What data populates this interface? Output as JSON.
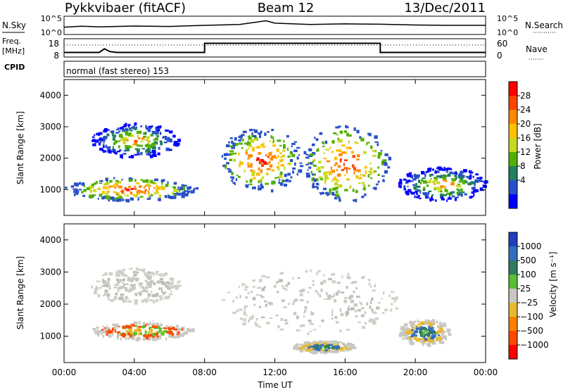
{
  "header": {
    "station": "Pykkvibaer (fitACF)",
    "beam": "Beam 12",
    "date": "13/Dec/2011"
  },
  "status_panel": {
    "nsky_label": "N.Sky",
    "nsky_ticks": [
      "10^5",
      "10^0"
    ],
    "nsearch_label": "N.Search",
    "freq_label_1": "Freq.",
    "freq_label_2": "[MHz]",
    "freq_ticks": [
      "18",
      "8"
    ],
    "nave_label": "Nave",
    "nave_ticks": [
      "60",
      "0"
    ],
    "cpid_label": "CPID",
    "cpid_text": "normal (fast stereo) 153",
    "nsky_series": {
      "t": [
        0,
        1,
        2,
        4,
        6,
        8,
        10,
        11.5,
        12,
        14,
        16,
        18,
        20,
        22,
        24
      ],
      "frac": [
        0.4,
        0.45,
        0.42,
        0.46,
        0.44,
        0.5,
        0.55,
        0.75,
        0.62,
        0.55,
        0.58,
        0.56,
        0.52,
        0.5,
        0.5
      ]
    },
    "nave_series": {
      "t": [
        0,
        2.0,
        2.3,
        2.6,
        3.0,
        8.0,
        8.0,
        18.0,
        18.0,
        24
      ],
      "frac": [
        0.25,
        0.25,
        0.45,
        0.3,
        0.25,
        0.25,
        0.75,
        0.75,
        0.25,
        0.25
      ]
    }
  },
  "power_panel": {
    "ylabel": "Slant Range [km]",
    "cbar_label": "Power [dB]",
    "cbar_ticks": [
      "28",
      "24",
      "20",
      "16",
      "12",
      "8",
      "4"
    ],
    "cbar_colors": [
      "#ff0000",
      "#ff4400",
      "#ff8800",
      "#ffc000",
      "#c8d820",
      "#50b000",
      "#208060",
      "#2850c8",
      "#0000ff"
    ]
  },
  "velocity_panel": {
    "ylabel": "Slant Range [km]",
    "cbar_label": "Velocity [m s⁻¹]",
    "cbar_ticks": [
      "1000",
      "500",
      "100",
      "25",
      "−25",
      "−100",
      "−500",
      "−1000"
    ],
    "cbar_colors": [
      "#1f3fbf",
      "#2f6fbf",
      "#307a60",
      "#58c030",
      "#c8c8c0",
      "#e8b830",
      "#ff8000",
      "#ff4800",
      "#ff0000"
    ]
  },
  "x_axis": {
    "label": "Time UT",
    "ticks": [
      "00:00",
      "04:00",
      "08:00",
      "12:00",
      "16:00",
      "20:00",
      "00:00"
    ]
  },
  "chart_data": [
    {
      "type": "heatmap",
      "xlabel": "Time UT",
      "ylabel": "Slant Range [km]",
      "xlim": [
        0,
        24
      ],
      "ylim": [
        180,
        4500
      ],
      "yticks": [
        "4000",
        "3000",
        "2000",
        "1000"
      ],
      "colorbar": {
        "label": "Power [dB]",
        "ticks": [
          28,
          24,
          20,
          16,
          12,
          8,
          4
        ]
      },
      "regions": [
        {
          "t": [
            0,
            7.5
          ],
          "r": [
            650,
            1450
          ],
          "level": "high"
        },
        {
          "t": [
            1.5,
            6.5
          ],
          "r": [
            2000,
            3200
          ],
          "level": "medium"
        },
        {
          "t": [
            8.8,
            13.5
          ],
          "r": [
            850,
            3100
          ],
          "level": "high"
        },
        {
          "t": [
            13.5,
            18.5
          ],
          "r": [
            500,
            3200
          ],
          "level": "high"
        },
        {
          "t": [
            19.0,
            24
          ],
          "r": [
            600,
            1800
          ],
          "level": "medium"
        }
      ]
    },
    {
      "type": "heatmap",
      "xlabel": "Time UT",
      "ylabel": "Slant Range [km]",
      "xlim": [
        0,
        24
      ],
      "ylim": [
        180,
        4500
      ],
      "yticks": [
        "4000",
        "3000",
        "2000",
        "1000"
      ],
      "colorbar": {
        "label": "Velocity [m s⁻¹]",
        "ticks": [
          1000,
          500,
          100,
          25,
          -25,
          -100,
          -500,
          -1000
        ]
      },
      "regions": [
        {
          "t": [
            1.5,
            7.3
          ],
          "r": [
            900,
            1500
          ],
          "level": "negative"
        },
        {
          "t": [
            1.5,
            6.5
          ],
          "r": [
            2000,
            3200
          ],
          "level": "ground"
        },
        {
          "t": [
            8.8,
            19.0
          ],
          "r": [
            1000,
            3200
          ],
          "level": "ground"
        },
        {
          "t": [
            13.0,
            16.5
          ],
          "r": [
            500,
            900
          ],
          "level": "positive"
        },
        {
          "t": [
            19.0,
            22.0
          ],
          "r": [
            700,
            1600
          ],
          "level": "positive"
        }
      ]
    }
  ]
}
